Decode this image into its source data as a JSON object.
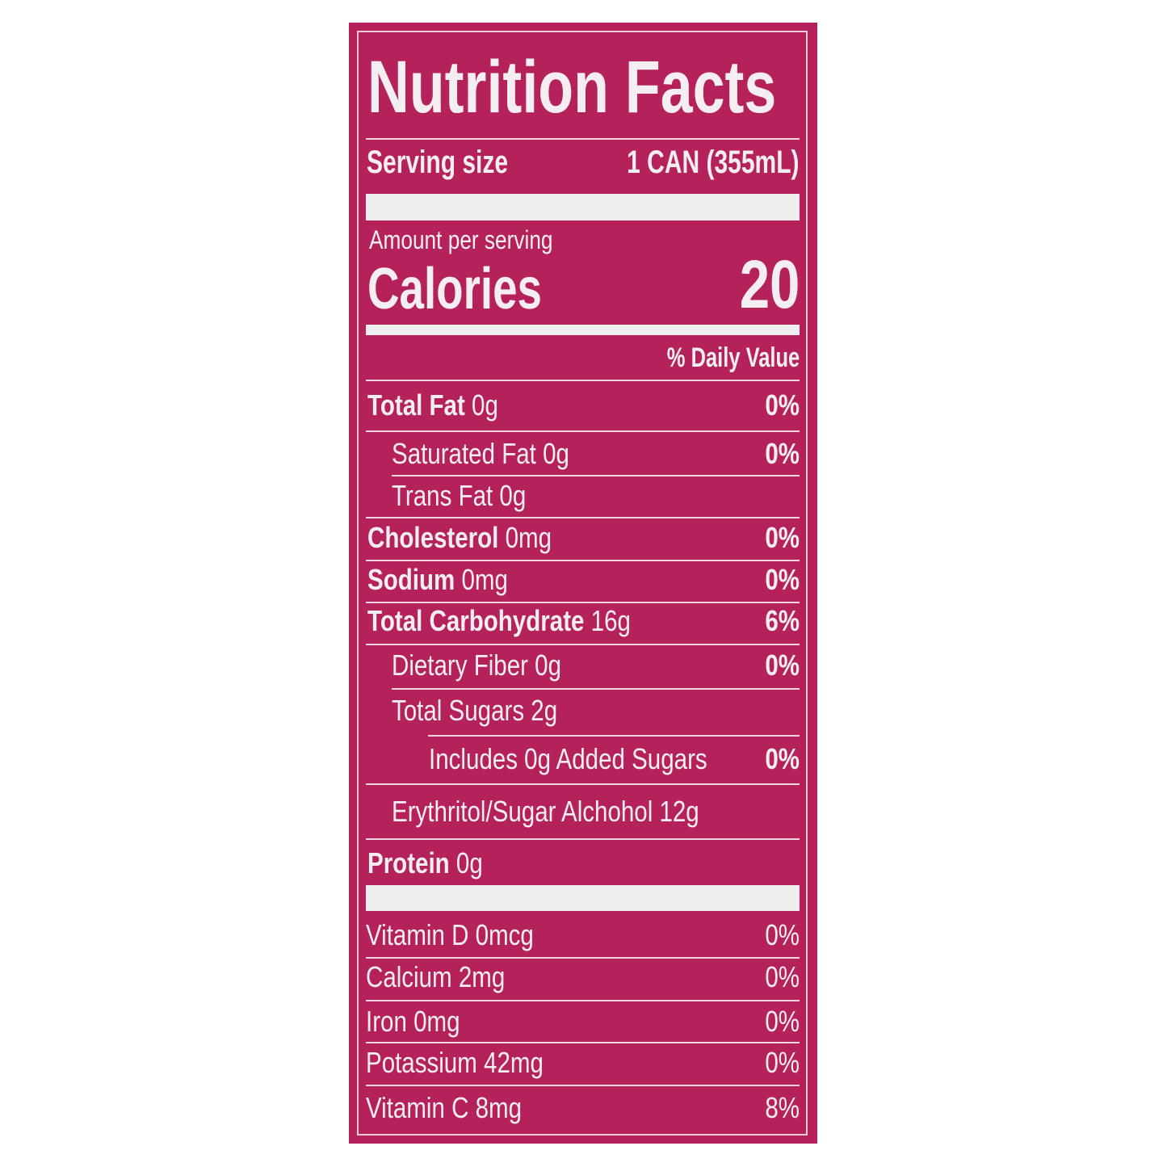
{
  "label": {
    "title": "Nutrition Facts",
    "serving_size_label": "Serving size",
    "serving_size_value": "1 CAN (355mL)",
    "amount_per_serving": "Amount per serving",
    "calories_label": "Calories",
    "calories_value": "20",
    "daily_value_header": "% Daily Value",
    "nutrients": [
      {
        "name": "Total Fat",
        "amount": "0g",
        "dv": "0%",
        "bold": true,
        "indent": 0
      },
      {
        "name": "Saturated Fat",
        "amount": "0g",
        "dv": "0%",
        "bold": false,
        "indent": 1
      },
      {
        "name": "Trans Fat",
        "amount": "0g",
        "dv": "",
        "bold": false,
        "indent": 1
      },
      {
        "name": "Cholesterol",
        "amount": "0mg",
        "dv": "0%",
        "bold": true,
        "indent": 0
      },
      {
        "name": "Sodium",
        "amount": "0mg",
        "dv": "0%",
        "bold": true,
        "indent": 0
      },
      {
        "name": "Total Carbohydrate",
        "amount": " 16g",
        "dv": "6%",
        "bold": true,
        "indent": 0
      },
      {
        "name": "Dietary Fiber",
        "amount": "0g",
        "dv": "0%",
        "bold": false,
        "indent": 1
      },
      {
        "name": "Total Sugars",
        "amount": "2g",
        "dv": "",
        "bold": false,
        "indent": 1
      },
      {
        "name": "Includes 0g Added Sugars",
        "amount": "",
        "dv": "0%",
        "bold": false,
        "indent": 2
      },
      {
        "name": "Erythritol/Sugar Alchohol",
        "amount": "12g",
        "dv": "",
        "bold": false,
        "indent": 1
      },
      {
        "name": "Protein",
        "amount": "0g",
        "dv": "",
        "bold": true,
        "indent": 0
      }
    ],
    "vitamins": [
      {
        "name": "Vitamin D",
        "amount": "0mcg",
        "dv": "0%"
      },
      {
        "name": "Calcium",
        "amount": "2mg",
        "dv": "0%"
      },
      {
        "name": "Iron",
        "amount": "0mg",
        "dv": "0%"
      },
      {
        "name": "Potassium",
        "amount": "42mg",
        "dv": "0%"
      },
      {
        "name": "Vitamin C",
        "amount": "8mg",
        "dv": "8%"
      }
    ],
    "colors": {
      "background": "#b5215b",
      "text": "#f4eef0",
      "bar": "#eeeeee"
    }
  }
}
